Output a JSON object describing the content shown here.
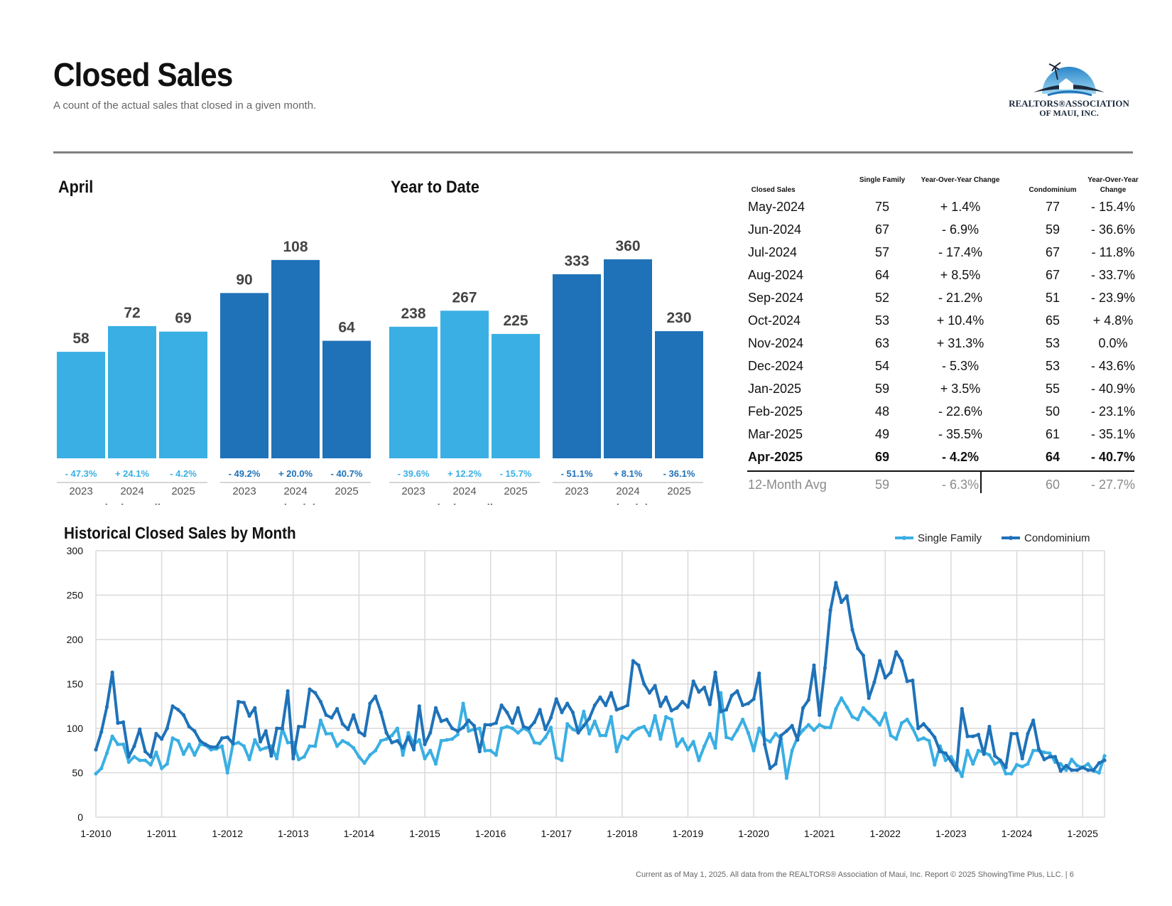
{
  "header": {
    "title": "Closed Sales",
    "subtitle": "A count of the actual sales that closed in a given month."
  },
  "logo": {
    "line1": "REALTORS®ASSOCIATION",
    "line2": "OF MAUI, INC."
  },
  "april": {
    "title": "April",
    "groups": [
      {
        "name": "Single Family",
        "color": "#3aafe3",
        "years": [
          "2023",
          "2024",
          "2025"
        ],
        "values": [
          58,
          72,
          69
        ],
        "changes": [
          "- 47.3%",
          "+ 24.1%",
          "- 4.2%"
        ]
      },
      {
        "name": "Condominium",
        "color": "#1f72b8",
        "years": [
          "2023",
          "2024",
          "2025"
        ],
        "values": [
          90,
          108,
          64
        ],
        "changes": [
          "- 49.2%",
          "+ 20.0%",
          "- 40.7%"
        ]
      }
    ]
  },
  "ytd": {
    "title": "Year to Date",
    "groups": [
      {
        "name": "Single Family",
        "color": "#3aafe3",
        "years": [
          "2023",
          "2024",
          "2025"
        ],
        "values": [
          238,
          267,
          225
        ],
        "changes": [
          "- 39.6%",
          "+ 12.2%",
          "- 15.7%"
        ]
      },
      {
        "name": "Condominium",
        "color": "#1f72b8",
        "years": [
          "2023",
          "2024",
          "2025"
        ],
        "values": [
          333,
          360,
          230
        ],
        "changes": [
          "- 51.1%",
          "+ 8.1%",
          "- 36.1%"
        ]
      }
    ]
  },
  "table": {
    "headers": [
      "Closed Sales",
      "Single Family",
      "Year-Over-Year Change",
      "Condominium",
      "Year-Over-Year Change"
    ],
    "rows": [
      [
        "May-2024",
        "75",
        "+ 1.4%",
        "77",
        "- 15.4%"
      ],
      [
        "Jun-2024",
        "67",
        "- 6.9%",
        "59",
        "- 36.6%"
      ],
      [
        "Jul-2024",
        "57",
        "- 17.4%",
        "67",
        "- 11.8%"
      ],
      [
        "Aug-2024",
        "64",
        "+ 8.5%",
        "67",
        "- 33.7%"
      ],
      [
        "Sep-2024",
        "52",
        "- 21.2%",
        "51",
        "- 23.9%"
      ],
      [
        "Oct-2024",
        "53",
        "+ 10.4%",
        "65",
        "+ 4.8%"
      ],
      [
        "Nov-2024",
        "63",
        "+ 31.3%",
        "53",
        "0.0%"
      ],
      [
        "Dec-2024",
        "54",
        "- 5.3%",
        "53",
        "- 43.6%"
      ],
      [
        "Jan-2025",
        "59",
        "+ 3.5%",
        "55",
        "- 40.9%"
      ],
      [
        "Feb-2025",
        "48",
        "- 22.6%",
        "50",
        "- 23.1%"
      ],
      [
        "Mar-2025",
        "49",
        "- 35.5%",
        "61",
        "- 35.1%"
      ],
      [
        "Apr-2025",
        "69",
        "- 4.2%",
        "64",
        "- 40.7%"
      ]
    ],
    "avg": [
      "12-Month Avg",
      "59",
      "- 6.3%",
      "60",
      "- 27.7%"
    ]
  },
  "chart_data": {
    "type": "line",
    "title": "Historical Closed Sales by Month",
    "ylim": [
      0,
      300
    ],
    "yticks": [
      0,
      50,
      100,
      150,
      200,
      250,
      300
    ],
    "xticks": [
      "1-2010",
      "1-2011",
      "1-2012",
      "1-2013",
      "1-2014",
      "1-2015",
      "1-2016",
      "1-2017",
      "1-2018",
      "1-2019",
      "1-2020",
      "1-2021",
      "1-2022",
      "1-2023",
      "1-2024",
      "1-2025"
    ],
    "start": "1-2010",
    "grid": true,
    "legend_position": "top-right",
    "series": [
      {
        "name": "Single Family",
        "color": "#3aafe3",
        "values": [
          49,
          55,
          72,
          91,
          82,
          82,
          62,
          68,
          64,
          64,
          59,
          73,
          55,
          60,
          89,
          86,
          71,
          82,
          70,
          82,
          81,
          76,
          77,
          80,
          50,
          82,
          84,
          80,
          65,
          87,
          76,
          78,
          80,
          66,
          100,
          84,
          84,
          65,
          68,
          80,
          80,
          109,
          94,
          94,
          80,
          86,
          83,
          78,
          68,
          61,
          70,
          75,
          86,
          88,
          92,
          100,
          70,
          95,
          82,
          87,
          66,
          75,
          60,
          86,
          87,
          88,
          93,
          128,
          97,
          99,
          100,
          75,
          75,
          70,
          100,
          102,
          100,
          95,
          100,
          97,
          84,
          83,
          90,
          101,
          67,
          64,
          105,
          99,
          96,
          119,
          94,
          108,
          92,
          92,
          113,
          74,
          91,
          88,
          96,
          100,
          102,
          92,
          114,
          88,
          113,
          110,
          80,
          88,
          76,
          85,
          64,
          80,
          94,
          78,
          140,
          90,
          88,
          98,
          110,
          95,
          75,
          100,
          88,
          85,
          94,
          88,
          44,
          75,
          90,
          98,
          104,
          98,
          104,
          101,
          101,
          122,
          134,
          124,
          113,
          110,
          123,
          117,
          111,
          104,
          117,
          92,
          88,
          106,
          110,
          100,
          87,
          89,
          86,
          59,
          80,
          64,
          68,
          58,
          46,
          75,
          60,
          75,
          73,
          70,
          60,
          63,
          49,
          49,
          59,
          57,
          60,
          75,
          75,
          73,
          72,
          62,
          60,
          53,
          65,
          58,
          56,
          60,
          52,
          50,
          69
        ]
      },
      {
        "name": "Condominium",
        "color": "#1f72b8",
        "values": [
          76,
          96,
          124,
          163,
          106,
          107,
          68,
          80,
          99,
          74,
          68,
          94,
          88,
          100,
          125,
          121,
          115,
          102,
          97,
          86,
          82,
          79,
          79,
          89,
          90,
          83,
          130,
          129,
          114,
          123,
          85,
          97,
          69,
          100,
          100,
          142,
          66,
          102,
          102,
          144,
          140,
          130,
          115,
          112,
          122,
          105,
          99,
          115,
          96,
          92,
          128,
          136,
          118,
          95,
          84,
          86,
          78,
          90,
          76,
          125,
          82,
          95,
          123,
          108,
          110,
          100,
          97,
          101,
          109,
          103,
          74,
          104,
          104,
          106,
          126,
          118,
          106,
          123,
          102,
          100,
          107,
          121,
          99,
          112,
          133,
          118,
          128,
          118,
          95,
          103,
          111,
          126,
          135,
          126,
          140,
          121,
          123,
          126,
          176,
          171,
          150,
          140,
          148,
          125,
          135,
          120,
          123,
          130,
          124,
          153,
          141,
          146,
          127,
          163,
          119,
          121,
          137,
          142,
          126,
          128,
          133,
          162,
          82,
          55,
          60,
          92,
          97,
          103,
          87,
          123,
          132,
          171,
          115,
          168,
          233,
          264,
          242,
          249,
          211,
          190,
          182,
          134,
          152,
          176,
          157,
          163,
          186,
          176,
          153,
          154,
          100,
          105,
          98,
          90,
          74,
          72,
          63,
          53,
          122,
          91,
          91,
          93,
          71,
          102,
          69,
          64,
          56,
          94,
          94,
          66,
          94,
          109,
          77,
          65,
          68,
          68,
          52,
          58,
          53,
          53,
          56,
          53,
          53,
          61,
          64
        ]
      }
    ]
  },
  "footer": {
    "text": "Current as of May 1, 2025. All data from the REALTORS® Association of Maui, Inc. Report © 2025 ShowingTime Plus, LLC.  |  6"
  }
}
